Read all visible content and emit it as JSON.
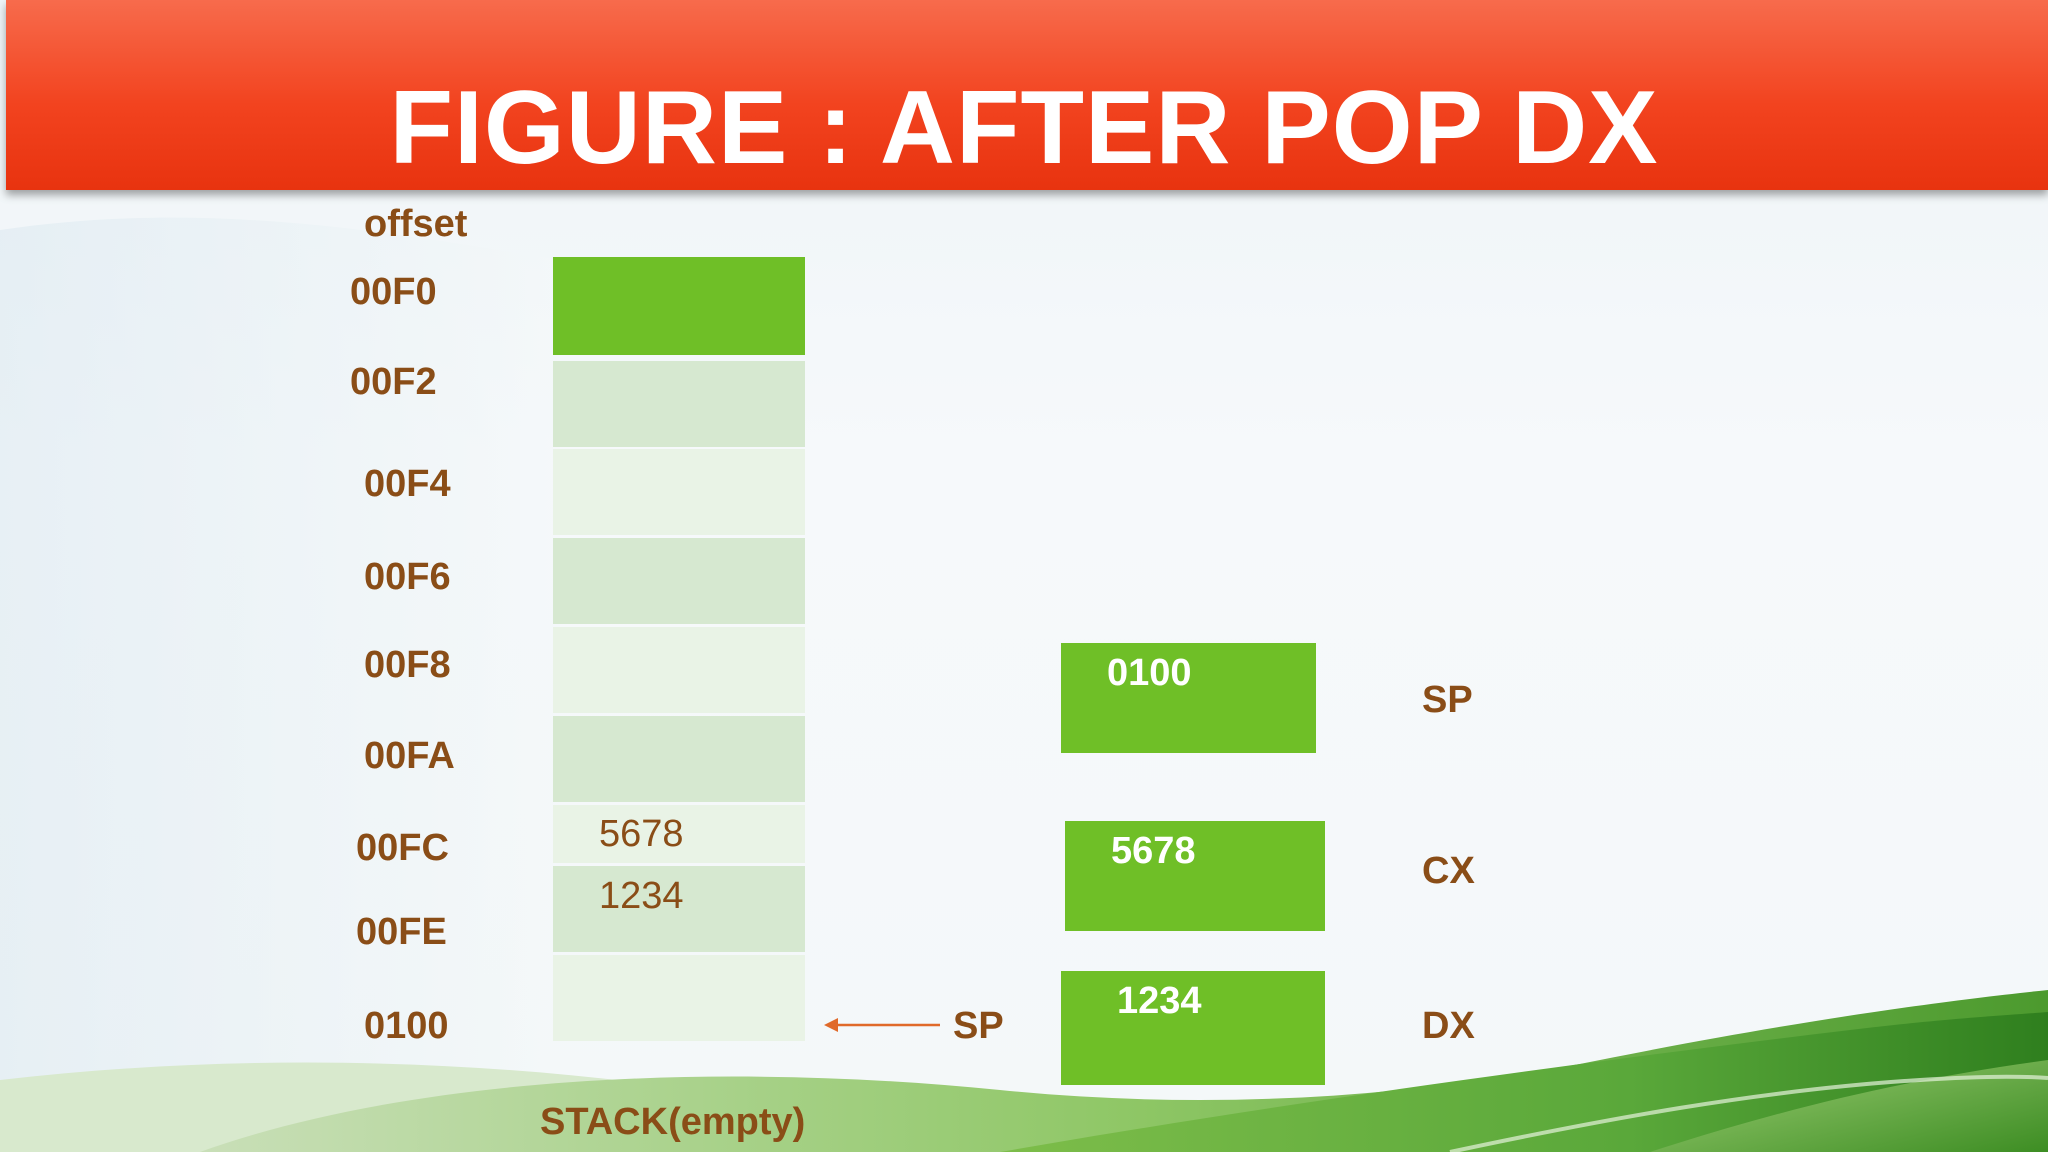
{
  "title": "FIGURE : AFTER POP DX",
  "stack": {
    "offset_header": "offset",
    "caption": "STACK(empty)",
    "rows": [
      {
        "offset": "00F0",
        "value": ""
      },
      {
        "offset": "00F2",
        "value": ""
      },
      {
        "offset": "00F4",
        "value": ""
      },
      {
        "offset": "00F6",
        "value": ""
      },
      {
        "offset": "00F8",
        "value": ""
      },
      {
        "offset": "00FA",
        "value": ""
      },
      {
        "offset": "00FC",
        "value": "5678"
      },
      {
        "offset": "00FE",
        "value": "1234"
      },
      {
        "offset": "0100",
        "value": ""
      }
    ],
    "pointer_label": "SP"
  },
  "registers": [
    {
      "name": "SP",
      "value": "0100"
    },
    {
      "name": "CX",
      "value": "5678"
    },
    {
      "name": "DX",
      "value": "1234"
    }
  ],
  "colors": {
    "header": "#f2431f",
    "label_text": "#8a4d17",
    "register_fill": "#6fbf27",
    "top_cell_fill": "#6fbf27",
    "cell_dark": "#d6e8d0",
    "cell_light": "#e9f3e6",
    "hill_green": "#5aa83a"
  }
}
